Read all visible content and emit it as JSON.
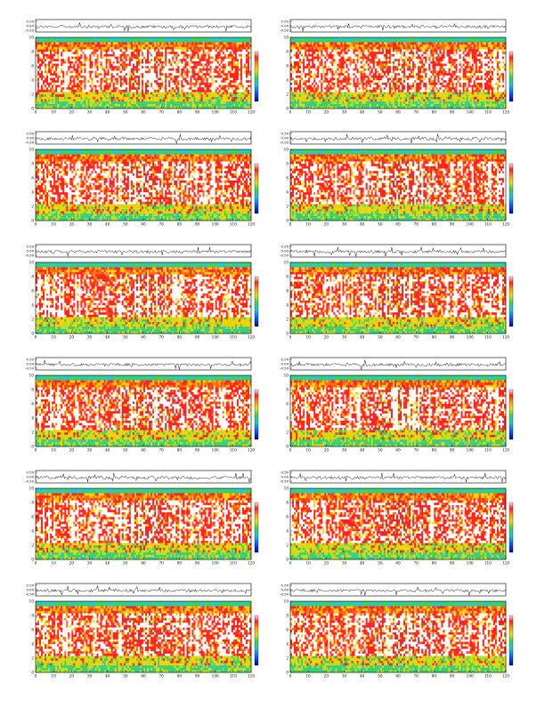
{
  "chart_data": [
    {
      "type": "heatmap",
      "title": "VLF Spectra",
      "date": "Jun282010",
      "station": "station=KAG",
      "start": "start UT =1220:0",
      "x": {
        "label": "Time (sec)",
        "ticks": [
          "0",
          "10",
          "20",
          "30",
          "40",
          "50",
          "60",
          "70",
          "80",
          "90",
          "100",
          "110",
          "120"
        ],
        "lim": [
          0,
          120
        ]
      },
      "waveform": {
        "ylabel": "ch1 (V)",
        "ticks": [
          "0.50",
          "0.00",
          "-0.50"
        ],
        "lim": [
          -0.5,
          0.5
        ]
      },
      "spectrogram": {
        "ylabel": "Frequency (kHz)",
        "ch_label": "ch1",
        "ticks": [
          "0",
          "2",
          "4",
          "6",
          "8",
          "10"
        ],
        "lim": [
          0,
          10
        ]
      },
      "colorbar": {
        "label": "log(PSD(V²/Hz))"
      }
    },
    {
      "type": "heatmap",
      "title": "VLF Spectra",
      "date": "Jun282010",
      "station": "station=KAG",
      "start": "start UT =1250:0",
      "x": {
        "label": "Time (sec)",
        "ticks": [
          "0",
          "10",
          "20",
          "30",
          "40",
          "50",
          "60",
          "70",
          "80",
          "90",
          "100",
          "110",
          "120"
        ],
        "lim": [
          0,
          120
        ]
      },
      "waveform": {
        "ylabel": "ch1 (V)",
        "ticks": [
          "0.50",
          "0.00",
          "-0.50"
        ],
        "lim": [
          -0.5,
          0.5
        ]
      },
      "spectrogram": {
        "ylabel": "Frequency (kHz)",
        "ch_label": "ch1",
        "ticks": [
          "0",
          "2",
          "4",
          "6",
          "8",
          "10"
        ],
        "lim": [
          0,
          10
        ]
      },
      "colorbar": {
        "label": "log(PSD(V²/Hz))"
      }
    },
    {
      "type": "heatmap",
      "title": "VLF Spectra",
      "date": "Jun282010",
      "station": "station=KAG",
      "start": "start UT =1320:0",
      "x": {
        "label": "Time (sec)",
        "ticks": [
          "0",
          "10",
          "20",
          "30",
          "40",
          "50",
          "60",
          "70",
          "80",
          "90",
          "100",
          "110",
          "120"
        ],
        "lim": [
          0,
          120
        ]
      },
      "waveform": {
        "ylabel": "ch1 (V)",
        "ticks": [
          "0.50",
          "0.00",
          "-0.50"
        ],
        "lim": [
          -0.5,
          0.5
        ]
      },
      "spectrogram": {
        "ylabel": "Frequency (kHz)",
        "ch_label": "ch1",
        "ticks": [
          "0",
          "2",
          "4",
          "6",
          "8",
          "10"
        ],
        "lim": [
          0,
          10
        ]
      },
      "colorbar": {
        "label": "log(PSD(V²/Hz))"
      }
    },
    {
      "type": "heatmap",
      "title": "VLF Spectra",
      "date": "Jun282010",
      "station": "station=KAG",
      "start": "start UT =1350:0",
      "x": {
        "label": "Time (sec)",
        "ticks": [
          "0",
          "10",
          "20",
          "30",
          "40",
          "50",
          "60",
          "70",
          "80",
          "90",
          "100",
          "110",
          "120"
        ],
        "lim": [
          0,
          120
        ]
      },
      "waveform": {
        "ylabel": "ch1 (V)",
        "ticks": [
          "0.50",
          "0.00",
          "-0.50"
        ],
        "lim": [
          -0.5,
          0.5
        ]
      },
      "spectrogram": {
        "ylabel": "Frequency (kHz)",
        "ch_label": "ch1",
        "ticks": [
          "0",
          "2",
          "4",
          "6",
          "8",
          "10"
        ],
        "lim": [
          0,
          10
        ]
      },
      "colorbar": {
        "label": "log(PSD(V²/Hz))"
      }
    },
    {
      "type": "heatmap",
      "title": "VLF Spectra",
      "date": "Jun282010",
      "station": "station=KAG",
      "start": "start UT =1420:0",
      "x": {
        "label": "Time (sec)",
        "ticks": [
          "0",
          "10",
          "20",
          "30",
          "40",
          "50",
          "60",
          "70",
          "80",
          "90",
          "100",
          "110",
          "120"
        ],
        "lim": [
          0,
          120
        ]
      },
      "waveform": {
        "ylabel": "ch1 (V)",
        "ticks": [
          "0.50",
          "0.00",
          "-0.50"
        ],
        "lim": [
          -0.5,
          0.5
        ]
      },
      "spectrogram": {
        "ylabel": "Frequency (kHz)",
        "ch_label": "ch1",
        "ticks": [
          "0",
          "2",
          "4",
          "6",
          "8",
          "10"
        ],
        "lim": [
          0,
          10
        ]
      },
      "colorbar": {
        "label": "log(PSD(V²/Hz))"
      }
    },
    {
      "type": "heatmap",
      "title": "VLF Spectra",
      "date": "Jun282010",
      "station": "station=KAG",
      "start": "start UT =1450:0",
      "x": {
        "label": "Time (sec)",
        "ticks": [
          "0",
          "10",
          "20",
          "30",
          "40",
          "50",
          "60",
          "70",
          "80",
          "90",
          "100",
          "110",
          "120"
        ],
        "lim": [
          0,
          120
        ]
      },
      "waveform": {
        "ylabel": "ch1 (V)",
        "ticks": [
          "0.50",
          "0.00",
          "-0.50"
        ],
        "lim": [
          -0.5,
          0.5
        ]
      },
      "spectrogram": {
        "ylabel": "Frequency (kHz)",
        "ch_label": "ch1",
        "ticks": [
          "0",
          "2",
          "4",
          "6",
          "8",
          "10"
        ],
        "lim": [
          0,
          10
        ]
      },
      "colorbar": {
        "label": "log(PSD(V²/Hz))"
      }
    },
    {
      "type": "heatmap",
      "title": "VLF Spectra",
      "date": "Jun282010",
      "station": "station=KAG",
      "start": "start UT =1520:0",
      "x": {
        "label": "Time (sec)",
        "ticks": [
          "0",
          "10",
          "20",
          "30",
          "40",
          "50",
          "60",
          "70",
          "80",
          "90",
          "100",
          "110",
          "120"
        ],
        "lim": [
          0,
          120
        ]
      },
      "waveform": {
        "ylabel": "ch1 (V)",
        "ticks": [
          "0.50",
          "0.00",
          "-0.50"
        ],
        "lim": [
          -0.5,
          0.5
        ]
      },
      "spectrogram": {
        "ylabel": "Frequency (kHz)",
        "ch_label": "ch1",
        "ticks": [
          "0",
          "2",
          "4",
          "6",
          "8",
          "10"
        ],
        "lim": [
          0,
          10
        ]
      },
      "colorbar": {
        "label": "log(PSD(V²/Hz))"
      }
    },
    {
      "type": "heatmap",
      "title": "VLF Spectra",
      "date": "Jun282010",
      "station": "station=KAG",
      "start": "start UT =1550:0",
      "x": {
        "label": "Time (sec)",
        "ticks": [
          "0",
          "10",
          "20",
          "30",
          "40",
          "50",
          "60",
          "70",
          "80",
          "90",
          "100",
          "110",
          "120"
        ],
        "lim": [
          0,
          120
        ]
      },
      "waveform": {
        "ylabel": "ch1 (V)",
        "ticks": [
          "0.50",
          "0.00",
          "-0.50"
        ],
        "lim": [
          -0.5,
          0.5
        ]
      },
      "spectrogram": {
        "ylabel": "Frequency (kHz)",
        "ch_label": "ch1",
        "ticks": [
          "0",
          "2",
          "4",
          "6",
          "8",
          "10"
        ],
        "lim": [
          0,
          10
        ]
      },
      "colorbar": {
        "label": "log(PSD(V²/Hz))"
      }
    },
    {
      "type": "heatmap",
      "title": "VLF Spectra",
      "date": "Jun282010",
      "station": "station=KAG",
      "start": "start UT =1620:0",
      "x": {
        "label": "Time (sec)",
        "ticks": [
          "0",
          "10",
          "20",
          "30",
          "40",
          "50",
          "60",
          "70",
          "80",
          "90",
          "100",
          "110",
          "120"
        ],
        "lim": [
          0,
          120
        ]
      },
      "waveform": {
        "ylabel": "ch1 (V)",
        "ticks": [
          "0.50",
          "0.00",
          "-0.50"
        ],
        "lim": [
          -0.5,
          0.5
        ]
      },
      "spectrogram": {
        "ylabel": "Frequency (kHz)",
        "ch_label": "ch1",
        "ticks": [
          "0",
          "2",
          "4",
          "6",
          "8",
          "10"
        ],
        "lim": [
          0,
          10
        ]
      },
      "colorbar": {
        "label": "log(PSD(V²/Hz))"
      }
    },
    {
      "type": "heatmap",
      "title": "VLF Spectra",
      "date": "Jun282010",
      "station": "station=KAG",
      "start": "start UT =1650:0",
      "x": {
        "label": "Time (sec)",
        "ticks": [
          "0",
          "10",
          "20",
          "30",
          "40",
          "50",
          "60",
          "70",
          "80",
          "90",
          "100",
          "110",
          "120"
        ],
        "lim": [
          0,
          120
        ]
      },
      "waveform": {
        "ylabel": "ch1 (V)",
        "ticks": [
          "0.50",
          "0.00",
          "-0.50"
        ],
        "lim": [
          -0.5,
          0.5
        ]
      },
      "spectrogram": {
        "ylabel": "Frequency (kHz)",
        "ch_label": "ch1",
        "ticks": [
          "0",
          "2",
          "4",
          "6",
          "8",
          "10"
        ],
        "lim": [
          0,
          10
        ]
      },
      "colorbar": {
        "label": "log(PSD(V²/Hz))"
      }
    },
    {
      "type": "heatmap",
      "title": "VLF Spectra",
      "date": "Jun282010",
      "station": "station=KAG",
      "start": "start UT =1720:0",
      "x": {
        "label": "Time (sec)",
        "ticks": [
          "0",
          "10",
          "20",
          "30",
          "40",
          "50",
          "60",
          "70",
          "80",
          "90",
          "100",
          "110",
          "120"
        ],
        "lim": [
          0,
          120
        ]
      },
      "waveform": {
        "ylabel": "ch1 (V)",
        "ticks": [
          "0.50",
          "0.00",
          "-0.50"
        ],
        "lim": [
          -0.5,
          0.5
        ]
      },
      "spectrogram": {
        "ylabel": "Frequency (kHz)",
        "ch_label": "ch1",
        "ticks": [
          "0",
          "2",
          "4",
          "6",
          "8",
          "10"
        ],
        "lim": [
          0,
          10
        ]
      },
      "colorbar": {
        "label": "log(PSD(V²/Hz))"
      }
    },
    {
      "type": "heatmap",
      "title": "VLF Spectra",
      "date": "Jun282010",
      "station": "station=KAG",
      "start": "start UT =1250:0",
      "x": {
        "label": "Time (sec)",
        "ticks": [
          "0",
          "10",
          "20",
          "30",
          "40",
          "50",
          "60",
          "70",
          "80",
          "90",
          "100",
          "110",
          "120"
        ],
        "lim": [
          0,
          120
        ]
      },
      "waveform": {
        "ylabel": "ch1 (V)",
        "ticks": [
          "0.50",
          "0.00",
          "-0.50"
        ],
        "lim": [
          -0.5,
          0.5
        ]
      },
      "spectrogram": {
        "ylabel": "Frequency (kHz)",
        "ch_label": "ch1",
        "ticks": [
          "0",
          "2",
          "4",
          "6",
          "8",
          "10"
        ],
        "lim": [
          0,
          10
        ]
      },
      "colorbar": {
        "label": "log(PSD(V²/Hz))"
      }
    }
  ],
  "colors": {
    "spectrum": [
      "#ffffff",
      "#ff2020",
      "#ff6a10",
      "#ffd000",
      "#b8e020",
      "#3ed060",
      "#20c8c8",
      "#1060ff",
      "#0010a0"
    ],
    "waveform": "#000000"
  }
}
